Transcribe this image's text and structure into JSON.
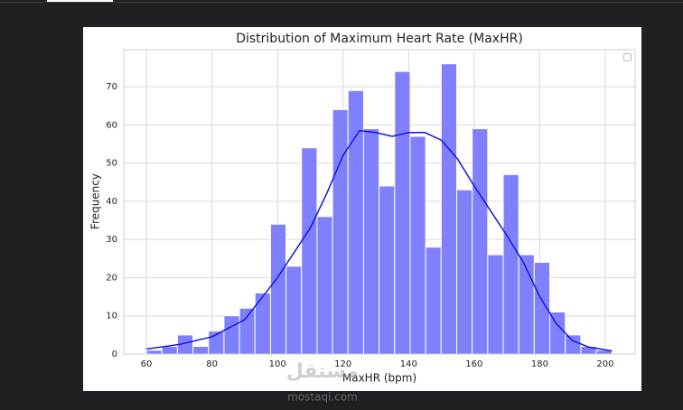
{
  "chart_data": {
    "type": "histogram",
    "title": "Distribution of Maximum Heart Rate (MaxHR)",
    "x_label": "MaxHR (bpm)",
    "y_label": "Frequency",
    "bins": [
      60,
      64.73,
      69.47,
      74.2,
      78.93,
      83.67,
      88.4,
      93.13,
      97.87,
      102.6,
      107.33,
      112.07,
      116.8,
      121.53,
      126.27,
      131,
      135.73,
      140.47,
      145.2,
      149.93,
      154.67,
      159.4,
      164.13,
      168.87,
      173.6,
      178.33,
      183.07,
      187.8,
      192.53,
      197.27,
      202
    ],
    "values": [
      1,
      2,
      5,
      2,
      6,
      10,
      12,
      16,
      34,
      23,
      54,
      36,
      64,
      69,
      59,
      44,
      74,
      57,
      28,
      76,
      43,
      59,
      26,
      47,
      26,
      24,
      11,
      5,
      2,
      1
    ],
    "color": "#8080ff",
    "kde": {
      "color": "#1414e6",
      "x": [
        60,
        70,
        80,
        90,
        100,
        110,
        115,
        120,
        125,
        130,
        135,
        140,
        145,
        150,
        155,
        160,
        165,
        170,
        175,
        180,
        185,
        190,
        195,
        202
      ],
      "values": [
        1.3,
        2.5,
        4.5,
        9,
        20,
        33,
        42,
        52,
        58.5,
        58,
        57,
        58,
        58,
        56,
        51,
        44,
        37.5,
        31,
        24,
        15,
        8,
        3.5,
        1.8,
        0.8
      ]
    },
    "xlim": [
      53.1,
      209.1
    ],
    "ylim": [
      0,
      79.7
    ],
    "xticks": [
      60,
      80,
      100,
      120,
      140,
      160,
      180,
      200
    ],
    "yticks": [
      0,
      10,
      20,
      30,
      40,
      50,
      60,
      70
    ],
    "grid": true,
    "watermark": [
      "مستقل",
      "mostaqi.com"
    ]
  }
}
